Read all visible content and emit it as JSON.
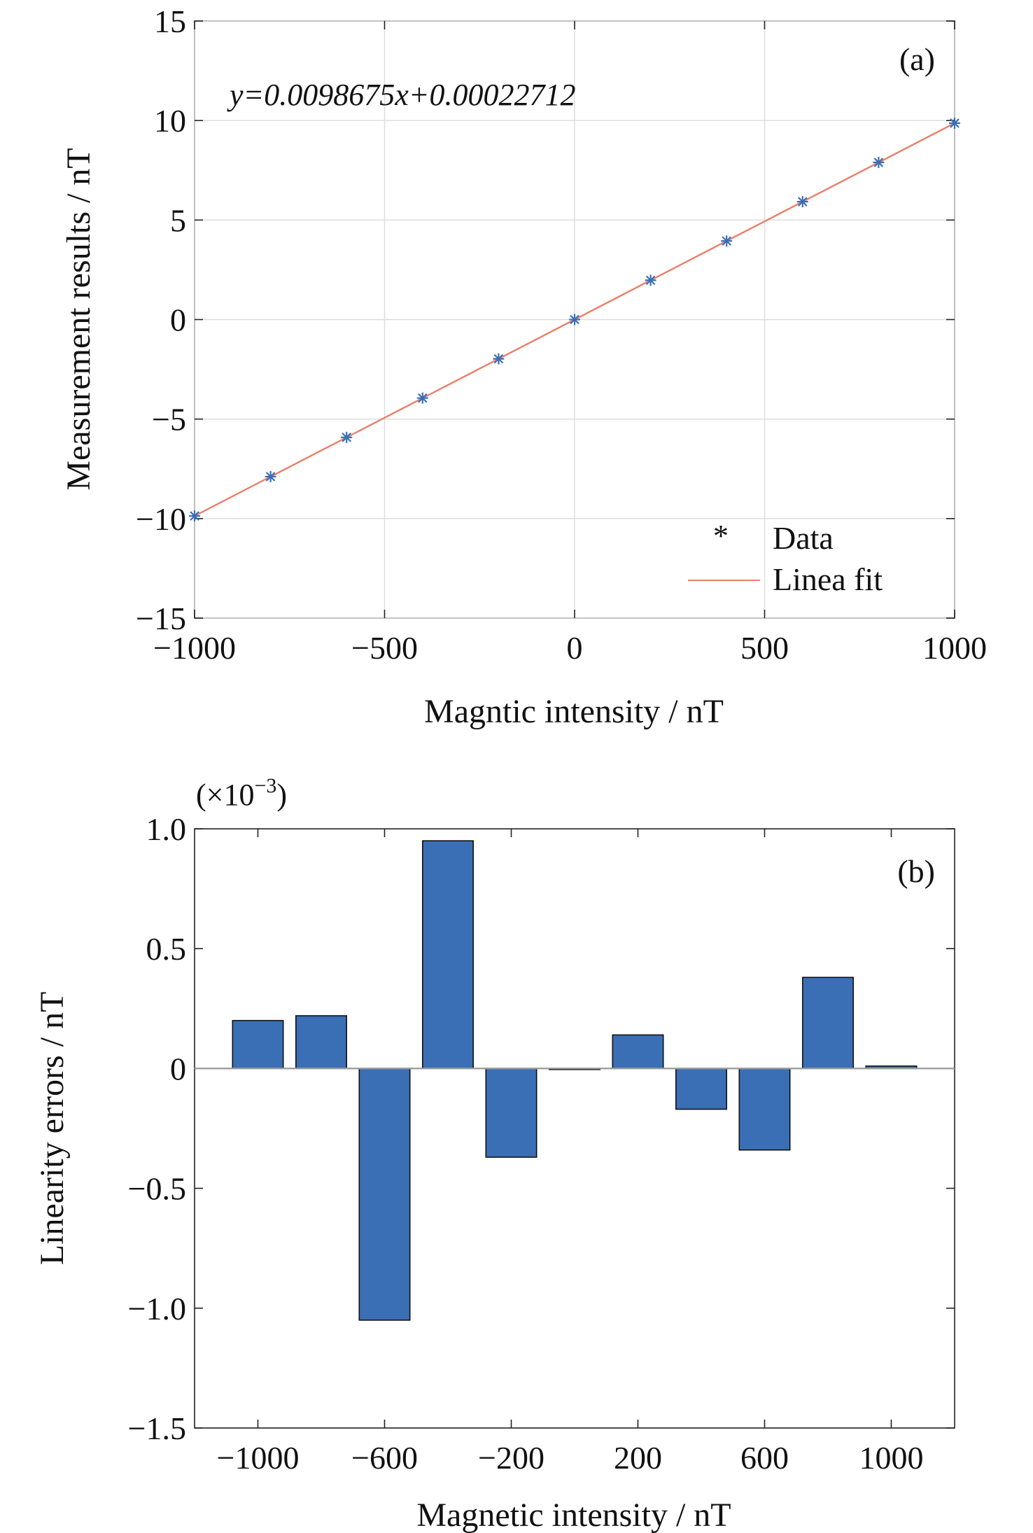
{
  "chart_data": [
    {
      "type": "scatter",
      "panel_label": "(a)",
      "equation": "y=0.0098675x+0.00022712",
      "xlabel": "Magntic intensity / nT",
      "ylabel": "Measurement results / nT",
      "xlim": [
        -1000,
        1000
      ],
      "ylim": [
        -15,
        15
      ],
      "xticks": [
        -1000,
        -500,
        0,
        500,
        1000
      ],
      "yticks": [
        -15,
        -10,
        -5,
        0,
        5,
        10,
        15
      ],
      "xtick_labels": [
        "−1000",
        "−500",
        "0",
        "500",
        "1000"
      ],
      "ytick_labels": [
        "−15",
        "−10",
        "−5",
        "0",
        "5",
        "10",
        "15"
      ],
      "grid": true,
      "legend_position": "bottom-right",
      "series": [
        {
          "name": "Data",
          "kind": "markers",
          "color": "#3a6fb5",
          "x": [
            -1000,
            -800,
            -600,
            -400,
            -200,
            0,
            200,
            400,
            600,
            800,
            1000
          ],
          "y": [
            -9.8677,
            -7.8938,
            -5.9205,
            -3.9461,
            -1.9739,
            0.0002,
            1.9737,
            3.9468,
            5.9205,
            7.8944,
            9.8677
          ]
        },
        {
          "name": "Linea fit",
          "kind": "line",
          "color": "#e8806a",
          "slope": 0.0098675,
          "intercept": 0.00022712,
          "x": [
            -1000,
            1000
          ]
        }
      ]
    },
    {
      "type": "bar",
      "panel_label": "(b)",
      "multiplier_label": "(×10",
      "multiplier_exponent": "−3",
      "multiplier_close": ")",
      "xlabel": "Magnetic intensity / nT",
      "ylabel": "Linearity errors / nT",
      "xlim": [
        -1200,
        1200
      ],
      "ylim": [
        -1.5,
        1.0
      ],
      "xticks": [
        -1000,
        -600,
        -200,
        200,
        600,
        1000
      ],
      "yticks": [
        -1.5,
        -1.0,
        -0.5,
        0,
        0.5,
        1.0
      ],
      "xtick_labels": [
        "−1000",
        "−600",
        "−200",
        "200",
        "600",
        "1000"
      ],
      "ytick_labels": [
        "−1.5",
        "−1.0",
        "−0.5",
        "0",
        "0.5",
        "1.0"
      ],
      "grid": false,
      "bar_color": "#3a6fb5",
      "categories": [
        -1000,
        -800,
        -600,
        -400,
        -200,
        0,
        200,
        400,
        600,
        800,
        1000
      ],
      "values": [
        0.2,
        0.22,
        -1.05,
        0.95,
        -0.37,
        0.0,
        0.14,
        -0.17,
        -0.34,
        0.38,
        0.01
      ]
    }
  ]
}
